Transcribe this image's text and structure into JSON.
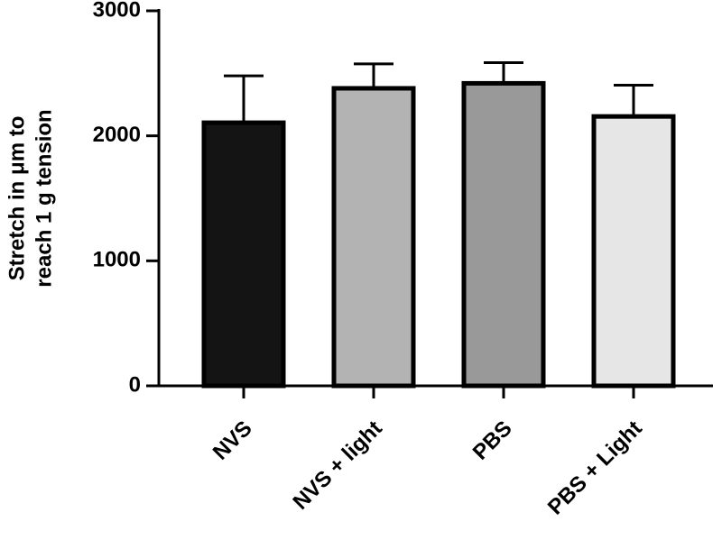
{
  "chart_data": {
    "type": "bar",
    "ylabel": [
      "Stretch in μm to",
      "reach 1 g tension"
    ],
    "categories": [
      "NVS",
      "NVS + light",
      "PBS",
      "PBS + Light"
    ],
    "values": [
      2105,
      2380,
      2420,
      2155
    ],
    "errors": [
      375,
      195,
      165,
      250
    ],
    "colors": [
      "#141414",
      "#b3b3b3",
      "#999999",
      "#e6e6e6"
    ],
    "ylim": [
      0,
      3000
    ],
    "yticks": [
      0,
      1000,
      2000,
      3000
    ],
    "grid": false
  }
}
